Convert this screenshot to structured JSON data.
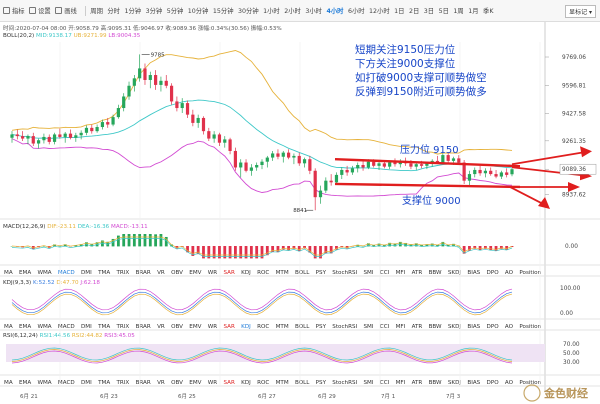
{
  "toolbar": {
    "items": [
      "指标",
      "设置",
      "画线",
      "周期",
      "分时",
      "1分钟",
      "3分钟",
      "5分钟",
      "10分钟",
      "15分钟",
      "30分钟",
      "1小时",
      "2小时",
      "3小时",
      "4小时",
      "6小时",
      "12小时",
      "1日",
      "2日",
      "3日",
      "5日",
      "1周",
      "1月",
      "季K"
    ],
    "active": "4小时",
    "right": "显标记"
  },
  "info": {
    "ohlc": "时间:2020-07-04 08:00  开:9058.79  高:9095.31  低:9046.97  收:9089.36  涨幅:0.34%(30.56)  振幅:0.53%",
    "boll_label": "BOLL(20,2)",
    "boll_mid": "MID:9138.17",
    "boll_ub": "UB:9271.99",
    "boll_lb": "LB:9004.35",
    "macd_label": "MACD(12,26,9)",
    "macd_dif": "DIF:-23.11",
    "macd_dea": "DEA:-16.36",
    "macd_val": "MACD:-13.11",
    "kdj_label": "KDJ(9,3,3)",
    "kdj_k": "K:52.52",
    "kdj_d": "D:47.70",
    "kdj_j": "J:62.18",
    "rsi_label": "RSI(6,12,24)",
    "rsi_1": "RSI1:44.56",
    "rsi_2": "RSI2:44.82",
    "rsi_3": "RSI3:45.05"
  },
  "annotations": {
    "text_lines": [
      "短期关注9150压力位",
      "下方关注9000支撑位",
      "如打破9000支撑可顺势做空",
      "反弹到9150附近可顺势做多"
    ],
    "resistance_label": "压力位 9150",
    "support_label": "支撑位  9000",
    "high_marker": "9785",
    "low_marker": "8841"
  },
  "indicator_tabs": [
    "MA",
    "EMA",
    "WMA",
    "MACD",
    "DMI",
    "TMA",
    "TRIX",
    "BRAR",
    "VR",
    "OBV",
    "EMV",
    "WR",
    "SAR",
    "KDJ",
    "ROC",
    "MTM",
    "BOLL",
    "PSY",
    "StochRSI",
    "SMI",
    "CCI",
    "MFI",
    "ATR",
    "BBW",
    "SKDJ",
    "BIAS",
    "DPO",
    "AO",
    "Position"
  ],
  "indicator_tabs_active": [
    "MACD",
    "KDJ"
  ],
  "indicator_tabs_highlight": [
    "SAR"
  ],
  "watermark": "金色财经",
  "chart_data": {
    "type": "candlestick",
    "x_ticks": [
      "6月 21",
      "6月 23",
      "6月 25",
      "6月 27",
      "6月 29",
      "7月 1",
      "7月 3"
    ],
    "price_axis_ticks": [
      "9769.06",
      "9596.81",
      "9427.58",
      "9261.35",
      "9089.36",
      "8937.62"
    ],
    "candles": [
      {
        "o": 9280,
        "h": 9320,
        "l": 9250,
        "c": 9300
      },
      {
        "o": 9300,
        "h": 9330,
        "l": 9270,
        "c": 9290
      },
      {
        "o": 9290,
        "h": 9320,
        "l": 9260,
        "c": 9275
      },
      {
        "o": 9275,
        "h": 9300,
        "l": 9240,
        "c": 9290
      },
      {
        "o": 9290,
        "h": 9310,
        "l": 9230,
        "c": 9245
      },
      {
        "o": 9245,
        "h": 9275,
        "l": 9215,
        "c": 9265
      },
      {
        "o": 9265,
        "h": 9305,
        "l": 9245,
        "c": 9285
      },
      {
        "o": 9285,
        "h": 9300,
        "l": 9240,
        "c": 9255
      },
      {
        "o": 9255,
        "h": 9310,
        "l": 9240,
        "c": 9300
      },
      {
        "o": 9300,
        "h": 9335,
        "l": 9275,
        "c": 9285
      },
      {
        "o": 9285,
        "h": 9315,
        "l": 9250,
        "c": 9305
      },
      {
        "o": 9305,
        "h": 9330,
        "l": 9270,
        "c": 9280
      },
      {
        "o": 9280,
        "h": 9310,
        "l": 9255,
        "c": 9295
      },
      {
        "o": 9295,
        "h": 9325,
        "l": 9270,
        "c": 9310
      },
      {
        "o": 9310,
        "h": 9355,
        "l": 9295,
        "c": 9340
      },
      {
        "o": 9340,
        "h": 9360,
        "l": 9305,
        "c": 9320
      },
      {
        "o": 9320,
        "h": 9360,
        "l": 9310,
        "c": 9345
      },
      {
        "o": 9345,
        "h": 9390,
        "l": 9330,
        "c": 9375
      },
      {
        "o": 9375,
        "h": 9400,
        "l": 9340,
        "c": 9360
      },
      {
        "o": 9360,
        "h": 9420,
        "l": 9350,
        "c": 9405
      },
      {
        "o": 9405,
        "h": 9480,
        "l": 9395,
        "c": 9460
      },
      {
        "o": 9460,
        "h": 9550,
        "l": 9440,
        "c": 9530
      },
      {
        "o": 9530,
        "h": 9620,
        "l": 9510,
        "c": 9595
      },
      {
        "o": 9595,
        "h": 9660,
        "l": 9560,
        "c": 9640
      },
      {
        "o": 9640,
        "h": 9785,
        "l": 9620,
        "c": 9700
      },
      {
        "o": 9700,
        "h": 9730,
        "l": 9600,
        "c": 9630
      },
      {
        "o": 9630,
        "h": 9680,
        "l": 9580,
        "c": 9660
      },
      {
        "o": 9660,
        "h": 9690,
        "l": 9570,
        "c": 9600
      },
      {
        "o": 9600,
        "h": 9650,
        "l": 9560,
        "c": 9625
      },
      {
        "o": 9625,
        "h": 9660,
        "l": 9580,
        "c": 9595
      },
      {
        "o": 9595,
        "h": 9610,
        "l": 9480,
        "c": 9500
      },
      {
        "o": 9500,
        "h": 9530,
        "l": 9440,
        "c": 9460
      },
      {
        "o": 9460,
        "h": 9520,
        "l": 9430,
        "c": 9490
      },
      {
        "o": 9490,
        "h": 9505,
        "l": 9400,
        "c": 9420
      },
      {
        "o": 9420,
        "h": 9450,
        "l": 9350,
        "c": 9370
      },
      {
        "o": 9370,
        "h": 9420,
        "l": 9340,
        "c": 9400
      },
      {
        "o": 9400,
        "h": 9410,
        "l": 9300,
        "c": 9320
      },
      {
        "o": 9320,
        "h": 9340,
        "l": 9260,
        "c": 9275
      },
      {
        "o": 9275,
        "h": 9320,
        "l": 9250,
        "c": 9300
      },
      {
        "o": 9300,
        "h": 9310,
        "l": 9230,
        "c": 9250
      },
      {
        "o": 9250,
        "h": 9290,
        "l": 9220,
        "c": 9270
      },
      {
        "o": 9270,
        "h": 9280,
        "l": 9180,
        "c": 9200
      },
      {
        "o": 9200,
        "h": 9220,
        "l": 9080,
        "c": 9100
      },
      {
        "o": 9100,
        "h": 9150,
        "l": 9040,
        "c": 9130
      },
      {
        "o": 9130,
        "h": 9150,
        "l": 9070,
        "c": 9080
      },
      {
        "o": 9080,
        "h": 9120,
        "l": 9050,
        "c": 9100
      },
      {
        "o": 9100,
        "h": 9130,
        "l": 9080,
        "c": 9115
      },
      {
        "o": 9115,
        "h": 9150,
        "l": 9090,
        "c": 9135
      },
      {
        "o": 9135,
        "h": 9170,
        "l": 9100,
        "c": 9160
      },
      {
        "o": 9160,
        "h": 9200,
        "l": 9140,
        "c": 9185
      },
      {
        "o": 9185,
        "h": 9210,
        "l": 9150,
        "c": 9165
      },
      {
        "o": 9165,
        "h": 9200,
        "l": 9130,
        "c": 9190
      },
      {
        "o": 9190,
        "h": 9210,
        "l": 9150,
        "c": 9160
      },
      {
        "o": 9160,
        "h": 9185,
        "l": 9120,
        "c": 9170
      },
      {
        "o": 9170,
        "h": 9190,
        "l": 9110,
        "c": 9125
      },
      {
        "o": 9125,
        "h": 9160,
        "l": 9100,
        "c": 9150
      },
      {
        "o": 9150,
        "h": 9170,
        "l": 9060,
        "c": 9080
      },
      {
        "o": 9080,
        "h": 9095,
        "l": 8841,
        "c": 8920
      },
      {
        "o": 8920,
        "h": 8990,
        "l": 8880,
        "c": 8960
      },
      {
        "o": 8960,
        "h": 9040,
        "l": 8945,
        "c": 9020
      },
      {
        "o": 9020,
        "h": 9060,
        "l": 8990,
        "c": 9010
      },
      {
        "o": 9010,
        "h": 9070,
        "l": 8995,
        "c": 9055
      },
      {
        "o": 9055,
        "h": 9100,
        "l": 9030,
        "c": 9085
      },
      {
        "o": 9085,
        "h": 9110,
        "l": 9050,
        "c": 9070
      },
      {
        "o": 9070,
        "h": 9110,
        "l": 9055,
        "c": 9095
      },
      {
        "o": 9095,
        "h": 9130,
        "l": 9070,
        "c": 9115
      },
      {
        "o": 9115,
        "h": 9140,
        "l": 9080,
        "c": 9100
      },
      {
        "o": 9100,
        "h": 9150,
        "l": 9090,
        "c": 9135
      },
      {
        "o": 9135,
        "h": 9150,
        "l": 9100,
        "c": 9110
      },
      {
        "o": 9110,
        "h": 9140,
        "l": 9085,
        "c": 9125
      },
      {
        "o": 9125,
        "h": 9145,
        "l": 9095,
        "c": 9105
      },
      {
        "o": 9105,
        "h": 9140,
        "l": 9090,
        "c": 9130
      },
      {
        "o": 9130,
        "h": 9155,
        "l": 9105,
        "c": 9120
      },
      {
        "o": 9120,
        "h": 9150,
        "l": 9100,
        "c": 9140
      },
      {
        "o": 9140,
        "h": 9160,
        "l": 9110,
        "c": 9125
      },
      {
        "o": 9125,
        "h": 9145,
        "l": 9090,
        "c": 9105
      },
      {
        "o": 9105,
        "h": 9130,
        "l": 9085,
        "c": 9120
      },
      {
        "o": 9120,
        "h": 9140,
        "l": 9095,
        "c": 9110
      },
      {
        "o": 9110,
        "h": 9135,
        "l": 9090,
        "c": 9125
      },
      {
        "o": 9125,
        "h": 9150,
        "l": 9105,
        "c": 9140
      },
      {
        "o": 9140,
        "h": 9170,
        "l": 9120,
        "c": 9130
      },
      {
        "o": 9130,
        "h": 9185,
        "l": 9120,
        "c": 9175
      },
      {
        "o": 9175,
        "h": 9190,
        "l": 9130,
        "c": 9140
      },
      {
        "o": 9140,
        "h": 9165,
        "l": 9115,
        "c": 9155
      },
      {
        "o": 9155,
        "h": 9175,
        "l": 9120,
        "c": 9130
      },
      {
        "o": 9130,
        "h": 9145,
        "l": 9000,
        "c": 9020
      },
      {
        "o": 9020,
        "h": 9080,
        "l": 8990,
        "c": 9060
      },
      {
        "o": 9060,
        "h": 9100,
        "l": 9040,
        "c": 9085
      },
      {
        "o": 9085,
        "h": 9110,
        "l": 9050,
        "c": 9065
      },
      {
        "o": 9065,
        "h": 9095,
        "l": 9040,
        "c": 9080
      },
      {
        "o": 9080,
        "h": 9100,
        "l": 9050,
        "c": 9060
      },
      {
        "o": 9060,
        "h": 9085,
        "l": 9035,
        "c": 9045
      },
      {
        "o": 9045,
        "h": 9080,
        "l": 9030,
        "c": 9070
      },
      {
        "o": 9070,
        "h": 9095,
        "l": 9040,
        "c": 9055
      },
      {
        "o": 9058.79,
        "h": 9095.31,
        "l": 9046.97,
        "c": 9089.36
      }
    ],
    "resistance_level": 9150,
    "support_level": 9000,
    "macd_axis_ticks": [
      "0.00"
    ],
    "kdj_axis_ticks": [
      "100.00",
      "0.00"
    ],
    "rsi_axis_ticks": [
      "70.00",
      "50.00",
      "30.00"
    ],
    "colors": {
      "up": "#26a65b",
      "down": "#e0314b",
      "boll_ub": "#e6b23a",
      "boll_mid": "#3ec8c8",
      "boll_lb": "#d24bd2",
      "arrow": "#e01e1e",
      "text": "#1846c8"
    }
  }
}
